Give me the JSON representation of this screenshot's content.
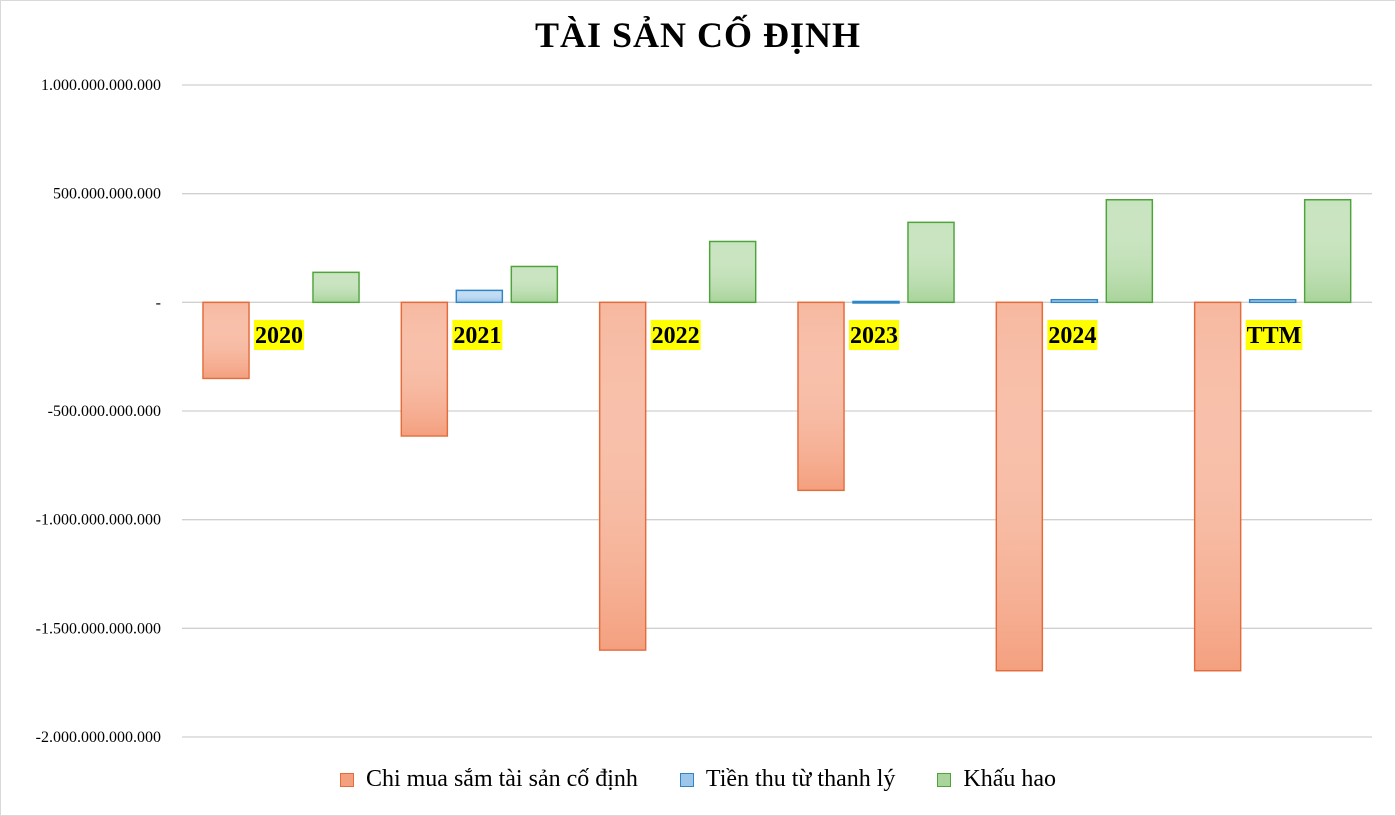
{
  "chart_data": {
    "type": "bar",
    "title": "TÀI SẢN CỐ ĐỊNH",
    "categories": [
      "2020",
      "2021",
      "2022",
      "2023",
      "2024",
      "TTM"
    ],
    "series": [
      {
        "name": "Chi mua sắm tài sản cố định",
        "values": [
          -350000000000,
          -615000000000,
          -1600000000000,
          -865000000000,
          -1695000000000,
          -1695000000000
        ],
        "color": "#f4a07f",
        "edge": "#e46c3c"
      },
      {
        "name": "Tiền thu từ thanh lý",
        "values": [
          0,
          55000000000,
          0,
          4000000000,
          12000000000,
          12000000000
        ],
        "color": "#9dc6ea",
        "edge": "#2e86c8"
      },
      {
        "name": "Khấu hao",
        "values": [
          138000000000,
          165000000000,
          280000000000,
          368000000000,
          472000000000,
          472000000000
        ],
        "color": "#a9d49b",
        "edge": "#4ea43b"
      }
    ],
    "y_ticks": [
      {
        "value": 1000000000000,
        "label": "1.000.000.000.000"
      },
      {
        "value": 500000000000,
        "label": "500.000.000.000"
      },
      {
        "value": 0,
        "label": "-"
      },
      {
        "value": -500000000000,
        "label": "-500.000.000.000"
      },
      {
        "value": -1000000000000,
        "label": "-1.000.000.000.000"
      },
      {
        "value": -1500000000000,
        "label": "-1.500.000.000.000"
      },
      {
        "value": -2000000000000,
        "label": "-2.000.000.000.000"
      }
    ],
    "ylim": [
      -2000000000000,
      1000000000000
    ],
    "grid": true,
    "legend": "bottom",
    "xlabel": "",
    "ylabel": ""
  }
}
